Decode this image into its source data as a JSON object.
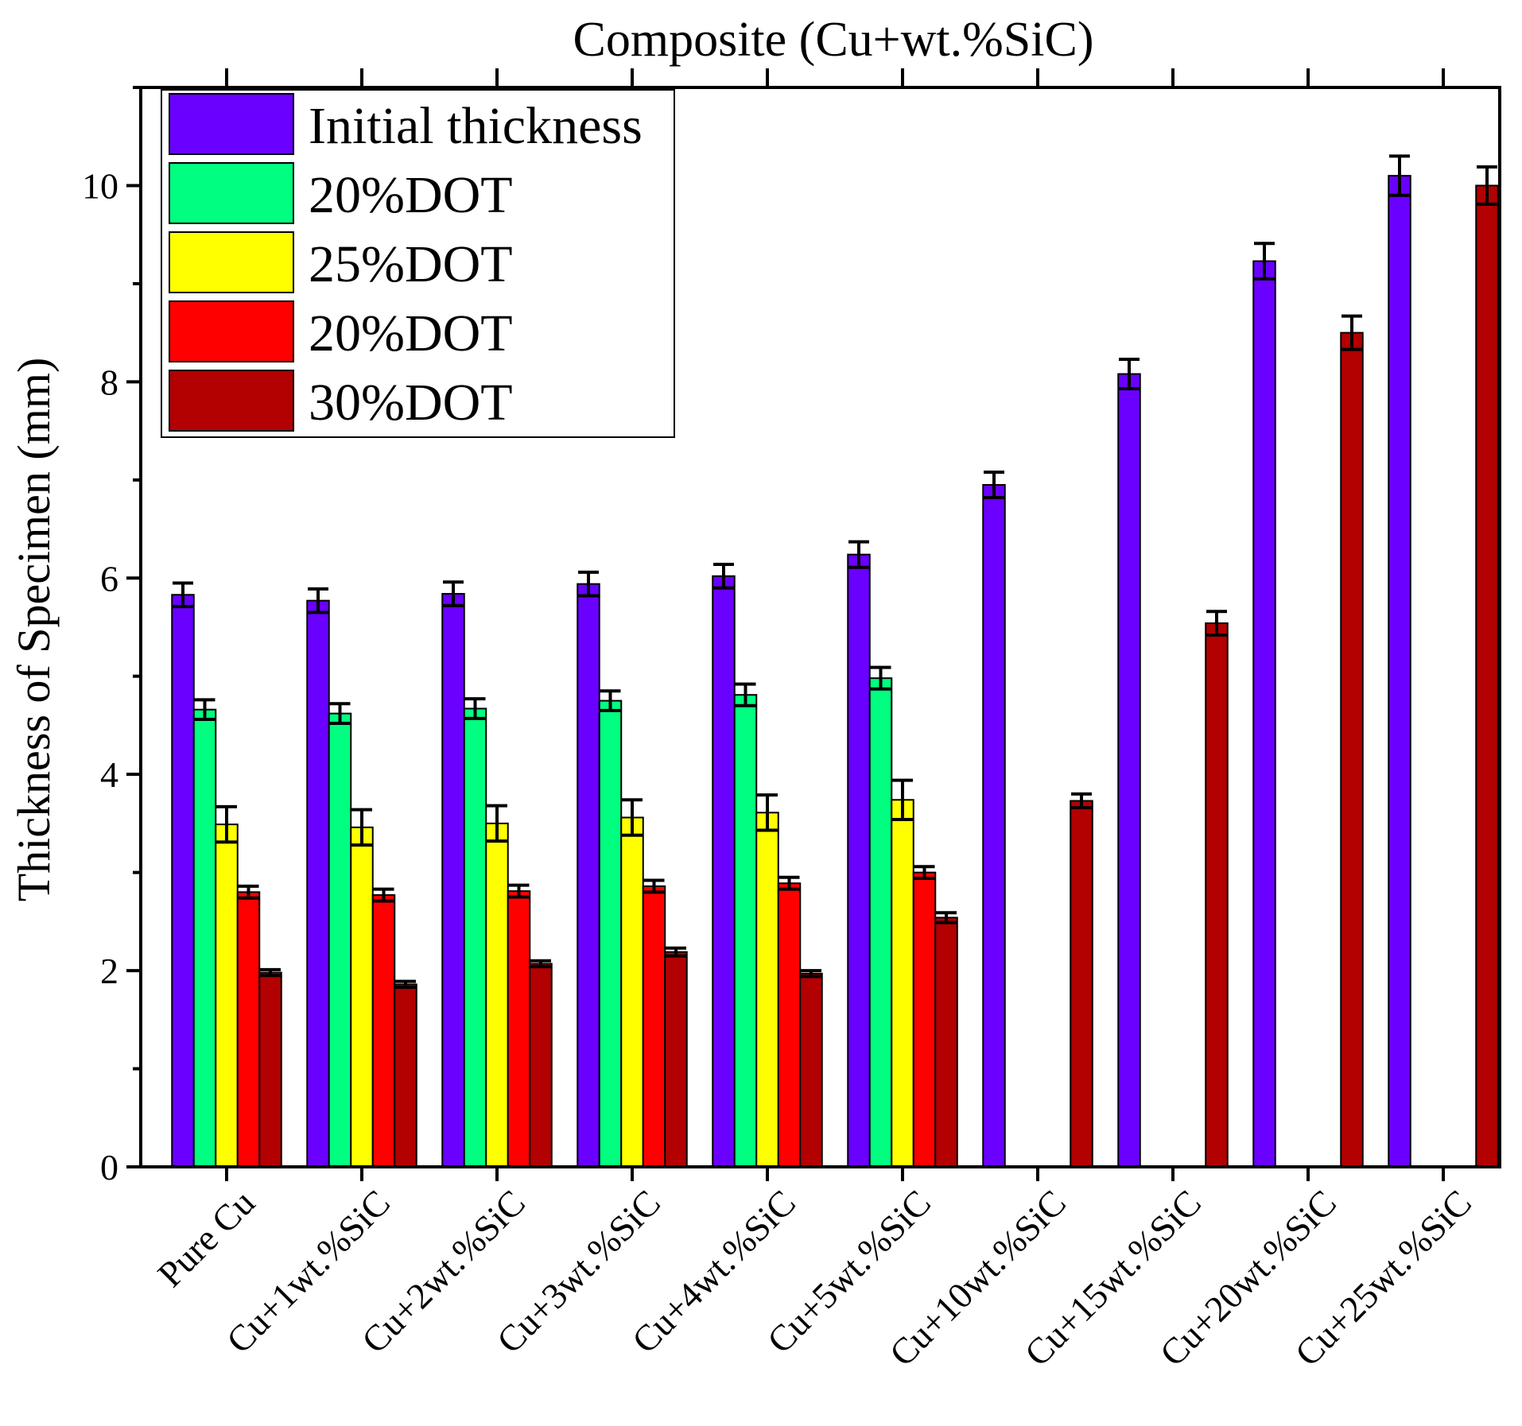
{
  "chart_data": {
    "type": "bar",
    "title": "Composite (Cu+wt.%SiC)",
    "xlabel": "",
    "ylabel": "Thickness of Specimen (mm)",
    "ylim": [
      0,
      11
    ],
    "yticks": [
      0,
      2,
      4,
      6,
      8,
      10
    ],
    "legend_position": "top-left",
    "categories": [
      "Pure Cu",
      "Cu+1wt.%SiC",
      "Cu+2wt.%SiC",
      "Cu+3wt.%SiC",
      "Cu+4wt.%SiC",
      "Cu+5wt.%SiC",
      "Cu+10wt.%SiC",
      "Cu+15wt.%SiC",
      "Cu+20wt.%SiC",
      "Cu+25wt.%SiC"
    ],
    "series": [
      {
        "name": "Initial thickness",
        "color": "#6a00ff",
        "values": [
          5.83,
          5.77,
          5.84,
          5.94,
          6.02,
          6.24,
          6.95,
          8.08,
          9.23,
          10.1
        ],
        "errors": [
          0.12,
          0.12,
          0.12,
          0.12,
          0.12,
          0.13,
          0.13,
          0.15,
          0.18,
          0.2
        ]
      },
      {
        "name": "20%DOT",
        "color": "#00ff80",
        "values": [
          4.66,
          4.62,
          4.67,
          4.75,
          4.81,
          4.98,
          null,
          null,
          null,
          null
        ],
        "errors": [
          0.1,
          0.1,
          0.1,
          0.1,
          0.11,
          0.11,
          null,
          null,
          null,
          null
        ]
      },
      {
        "name": "25%DOT",
        "color": "#ffff00",
        "values": [
          3.49,
          3.46,
          3.5,
          3.56,
          3.61,
          3.74,
          null,
          null,
          null,
          null
        ],
        "errors": [
          0.18,
          0.18,
          0.18,
          0.18,
          0.18,
          0.2,
          null,
          null,
          null,
          null
        ]
      },
      {
        "name": "20%DOT",
        "color": "#ff0000",
        "values": [
          2.8,
          2.77,
          2.81,
          2.86,
          2.89,
          3.0,
          null,
          null,
          null,
          null
        ],
        "errors": [
          0.06,
          0.06,
          0.06,
          0.06,
          0.06,
          0.06,
          null,
          null,
          null,
          null
        ]
      },
      {
        "name": "30%DOT",
        "color": "#b30000",
        "values": [
          1.98,
          1.86,
          2.07,
          2.19,
          1.97,
          2.54,
          3.73,
          5.54,
          8.5,
          10.0
        ],
        "errors": [
          0.03,
          0.03,
          0.03,
          0.04,
          0.03,
          0.05,
          0.07,
          0.12,
          0.17,
          0.19
        ]
      }
    ]
  }
}
